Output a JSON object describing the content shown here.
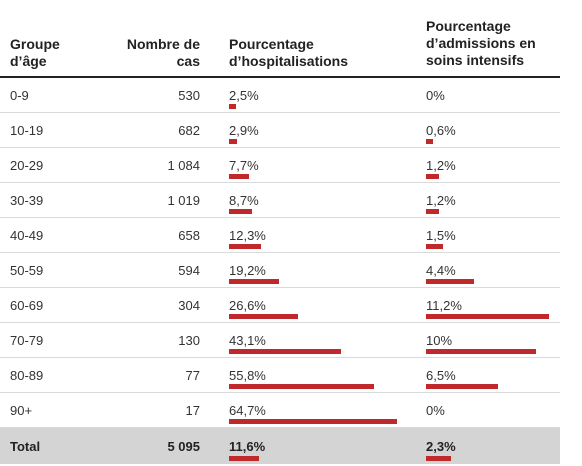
{
  "headers": {
    "age_group": [
      "Groupe",
      "d’âge"
    ],
    "cases": [
      "Nombre de",
      "cas"
    ],
    "hosp": [
      "Pourcentage",
      "d’hospitalisations"
    ],
    "icu": [
      "Pourcentage",
      "d’admissions en",
      "soins intensifs"
    ]
  },
  "rows": [
    {
      "age": "0-9",
      "cases": "530",
      "hosp_label": "2,5%",
      "hosp": 2.5,
      "icu_label": "0%",
      "icu": 0
    },
    {
      "age": "10-19",
      "cases": "682",
      "hosp_label": "2,9%",
      "hosp": 2.9,
      "icu_label": "0,6%",
      "icu": 0.6
    },
    {
      "age": "20-29",
      "cases": "1 084",
      "hosp_label": "7,7%",
      "hosp": 7.7,
      "icu_label": "1,2%",
      "icu": 1.2
    },
    {
      "age": "30-39",
      "cases": "1 019",
      "hosp_label": "8,7%",
      "hosp": 8.7,
      "icu_label": "1,2%",
      "icu": 1.2
    },
    {
      "age": "40-49",
      "cases": "658",
      "hosp_label": "12,3%",
      "hosp": 12.3,
      "icu_label": "1,5%",
      "icu": 1.5
    },
    {
      "age": "50-59",
      "cases": "594",
      "hosp_label": "19,2%",
      "hosp": 19.2,
      "icu_label": "4,4%",
      "icu": 4.4
    },
    {
      "age": "60-69",
      "cases": "304",
      "hosp_label": "26,6%",
      "hosp": 26.6,
      "icu_label": "11,2%",
      "icu": 11.2
    },
    {
      "age": "70-79",
      "cases": "130",
      "hosp_label": "43,1%",
      "hosp": 43.1,
      "icu_label": "10%",
      "icu": 10
    },
    {
      "age": "80-89",
      "cases": "77",
      "hosp_label": "55,8%",
      "hosp": 55.8,
      "icu_label": "6,5%",
      "icu": 6.5
    },
    {
      "age": "90+",
      "cases": "17",
      "hosp_label": "64,7%",
      "hosp": 64.7,
      "icu_label": "0%",
      "icu": 0
    }
  ],
  "total": {
    "label": "Total",
    "cases": "5 095",
    "hosp_label": "11,6%",
    "hosp": 11.6,
    "icu_label": "2,3%",
    "icu": 2.3
  },
  "colors": {
    "bar": "#c0292b",
    "total_bg": "#d4d4d4"
  }
}
